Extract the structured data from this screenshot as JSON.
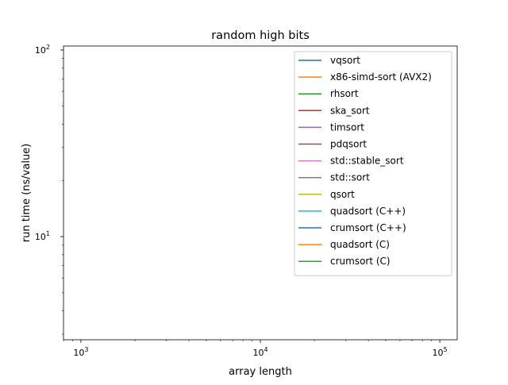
{
  "chart_data": {
    "type": "line",
    "title": "random high bits",
    "xlabel": "array length",
    "ylabel": "run time (ns/value)",
    "xscale": "log",
    "yscale": "log",
    "xlim": [
      800,
      125000
    ],
    "ylim": [
      2.8,
      105
    ],
    "x_ticks": [
      {
        "value": 1000,
        "base": "10",
        "exp": "3"
      },
      {
        "value": 10000,
        "base": "10",
        "exp": "4"
      },
      {
        "value": 100000,
        "base": "10",
        "exp": "5"
      }
    ],
    "y_ticks": [
      {
        "value": 10,
        "base": "10",
        "exp": "1"
      },
      {
        "value": 100,
        "base": "10",
        "exp": "2"
      }
    ],
    "grid": false,
    "legend_position": "top-right",
    "series": [
      {
        "name": "vqsort",
        "color": "#1f77b4",
        "x": [],
        "y": []
      },
      {
        "name": "x86-simd-sort (AVX2)",
        "color": "#ff7f0e",
        "x": [],
        "y": []
      },
      {
        "name": "rhsort",
        "color": "#2ca02c",
        "x": [],
        "y": []
      },
      {
        "name": "ska_sort",
        "color": "#d62728",
        "x": [],
        "y": []
      },
      {
        "name": "timsort",
        "color": "#9467bd",
        "x": [],
        "y": []
      },
      {
        "name": "pdqsort",
        "color": "#8c564b",
        "x": [],
        "y": []
      },
      {
        "name": "std::stable_sort",
        "color": "#e377c2",
        "x": [],
        "y": []
      },
      {
        "name": "std::sort",
        "color": "#7f7f7f",
        "x": [],
        "y": []
      },
      {
        "name": "qsort",
        "color": "#bcbd22",
        "x": [],
        "y": []
      },
      {
        "name": "quadsort (C++)",
        "color": "#17becf",
        "x": [],
        "y": []
      },
      {
        "name": "crumsort (C++)",
        "color": "#1f77b4",
        "x": [],
        "y": []
      },
      {
        "name": "quadsort (C)",
        "color": "#ff7f0e",
        "x": [],
        "y": []
      },
      {
        "name": "crumsort (C)",
        "color": "#2ca02c",
        "x": [],
        "y": []
      }
    ]
  }
}
